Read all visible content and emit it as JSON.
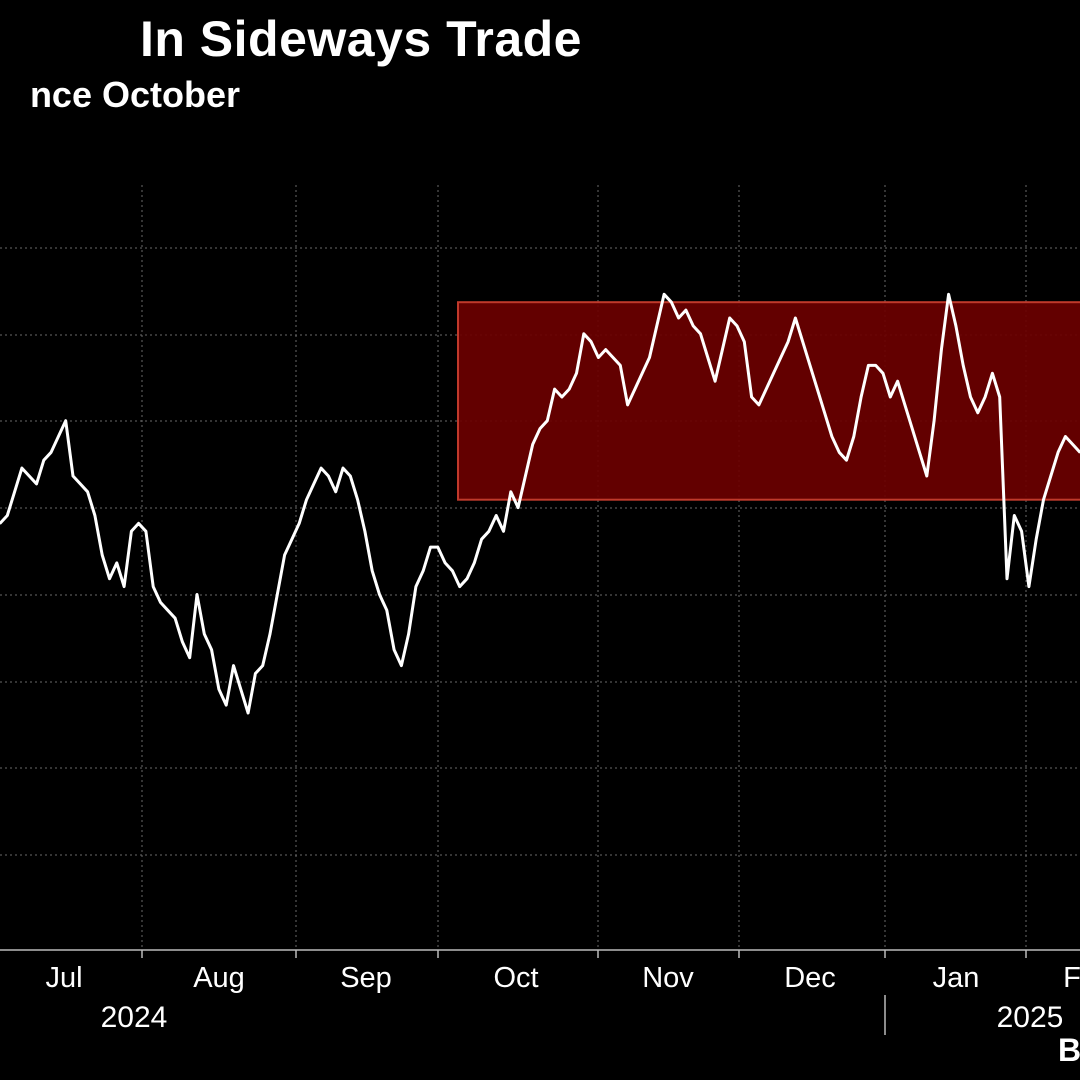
{
  "header": {
    "title_fragment": "In Sideways Trade",
    "subtitle_fragment": "nce October",
    "source_fragment": "B"
  },
  "colors": {
    "background": "#000000",
    "line": "#ffffff",
    "range_fill": "#6b0000",
    "range_border": "#c0392b",
    "grid": "#6a6a6a"
  },
  "chart_data": {
    "type": "line",
    "title": "In Sideways Trade",
    "subtitle": "nce October",
    "x_axis": {
      "tick_labels": [
        "Jul",
        "Aug",
        "Sep",
        "Oct",
        "Nov",
        "Dec",
        "Jan",
        "F"
      ],
      "year_labels": [
        "2024",
        "2025"
      ]
    },
    "y_axis": {
      "tick_labels": [],
      "ylim": [
        0,
        100
      ]
    },
    "grid": true,
    "highlight_range": {
      "label": "",
      "x_start": 0.425,
      "x_end": 1.0,
      "y_low": 57,
      "y_high": 82
    },
    "series": [
      {
        "values": [
          54,
          55,
          58,
          61,
          60,
          59,
          62,
          63,
          65,
          67,
          60,
          59,
          58,
          55,
          50,
          47,
          49,
          46,
          53,
          54,
          53,
          46,
          44,
          43,
          42,
          39,
          37,
          45,
          40,
          38,
          33,
          31,
          36,
          33,
          30,
          35,
          36,
          40,
          45,
          50,
          52,
          54,
          57,
          59,
          61,
          60,
          58,
          61,
          60,
          57,
          53,
          48,
          45,
          43,
          38,
          36,
          40,
          46,
          48,
          51,
          51,
          49,
          48,
          46,
          47,
          49,
          52,
          53,
          55,
          53,
          58,
          56,
          60,
          64,
          66,
          67,
          71,
          70,
          71,
          73,
          78,
          77,
          75,
          76,
          75,
          74,
          69,
          71,
          73,
          75,
          79,
          83,
          82,
          80,
          81,
          79,
          78,
          75,
          72,
          76,
          80,
          79,
          77,
          70,
          69,
          71,
          73,
          75,
          77,
          80,
          77,
          74,
          71,
          68,
          65,
          63,
          62,
          65,
          70,
          74,
          74,
          73,
          70,
          72,
          69,
          66,
          63,
          60,
          67,
          76,
          83,
          79,
          74,
          70,
          68,
          70,
          73,
          70,
          47,
          55,
          53,
          46,
          52,
          57,
          60,
          63,
          65,
          64,
          63
        ]
      }
    ]
  }
}
